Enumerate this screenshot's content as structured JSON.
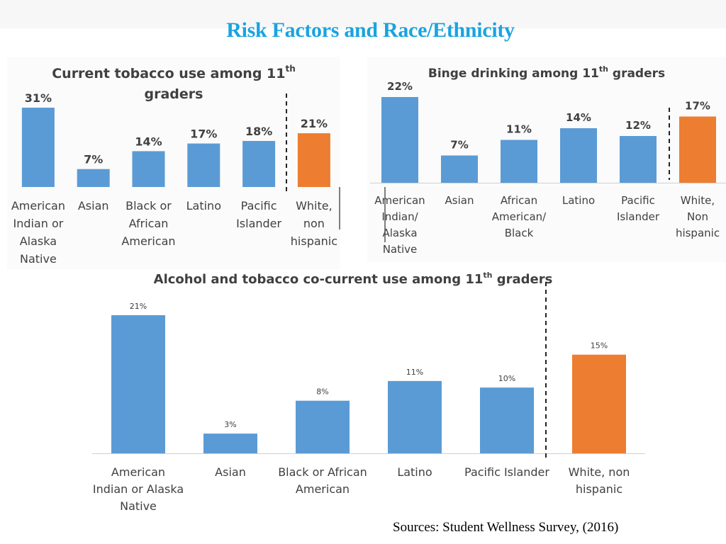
{
  "slide": {
    "title": "Risk Factors and Race/Ethnicity",
    "sources": "Sources: Student Wellness Survey, (2016)"
  },
  "colors": {
    "blue": "#5b9bd5",
    "orange": "#ed7d31",
    "title": "#1aa3e0",
    "text": "#404040"
  },
  "chart_data": [
    {
      "type": "bar",
      "title": "Current tobacco use among 11",
      "title_sup": "th",
      "title_line2": "graders",
      "categories": [
        [
          "American",
          "Indian or",
          "Alaska",
          "Native"
        ],
        [
          "Asian"
        ],
        [
          "Black or",
          "African",
          "American"
        ],
        [
          "Latino"
        ],
        [
          "Pacific",
          "Islander"
        ],
        [
          "White,",
          "non",
          "hispanic"
        ]
      ],
      "values": [
        31,
        7,
        14,
        17,
        18,
        21
      ],
      "labels": [
        "31%",
        "7%",
        "14%",
        "17%",
        "18%",
        "21%"
      ],
      "highlight": [
        false,
        false,
        false,
        false,
        false,
        true
      ],
      "ylim": [
        0,
        31
      ],
      "xlabel": "",
      "ylabel": ""
    },
    {
      "type": "bar",
      "title": "Binge drinking among 11",
      "title_sup": "th",
      "title_tail": " graders",
      "categories": [
        [
          "American",
          "Indian/",
          "Alaska",
          "Native"
        ],
        [
          "Asian"
        ],
        [
          "African",
          "American/",
          "Black"
        ],
        [
          "Latino"
        ],
        [
          "Pacific",
          "Islander"
        ],
        [
          "White,",
          "Non",
          "hispanic"
        ]
      ],
      "values": [
        22,
        7,
        11,
        14,
        12,
        17
      ],
      "labels": [
        "22%",
        "7%",
        "11%",
        "14%",
        "12%",
        "17%"
      ],
      "highlight": [
        false,
        false,
        false,
        false,
        false,
        true
      ],
      "ylim": [
        0,
        22
      ],
      "xlabel": "",
      "ylabel": ""
    },
    {
      "type": "bar",
      "title": "Alcohol and tobacco co-current use among 11",
      "title_sup": "th",
      "title_tail": " graders",
      "categories": [
        [
          "American",
          "Indian or Alaska",
          "Native"
        ],
        [
          "Asian"
        ],
        [
          "Black or African",
          "American"
        ],
        [
          "Latino"
        ],
        [
          "Pacific Islander"
        ],
        [
          "White, non",
          "hispanic"
        ]
      ],
      "values": [
        21,
        3,
        8,
        11,
        10,
        15
      ],
      "labels": [
        "21%",
        "3%",
        "8%",
        "11%",
        "10%",
        "15%"
      ],
      "highlight": [
        false,
        false,
        false,
        false,
        false,
        true
      ],
      "ylim": [
        0,
        21
      ],
      "xlabel": "",
      "ylabel": ""
    }
  ]
}
